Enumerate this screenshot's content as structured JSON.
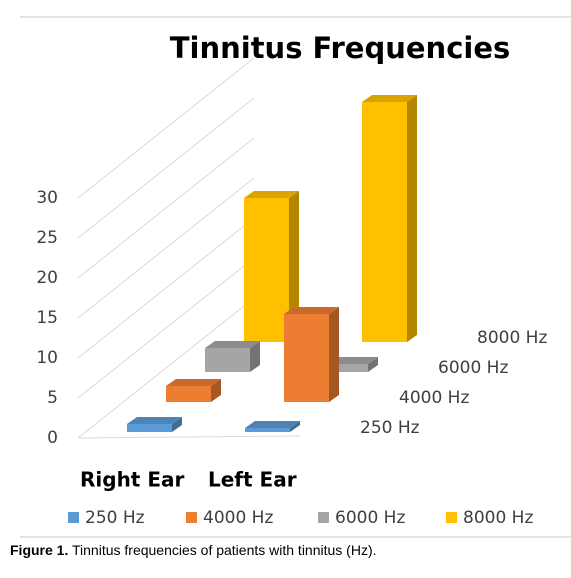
{
  "chart_data": {
    "type": "bar3d",
    "title": "Tinnitus Frequencies",
    "categories": [
      "Right Ear",
      "Left Ear"
    ],
    "series": [
      {
        "name": "250 Hz",
        "color": "#5b9bd5",
        "values": [
          1,
          0.5
        ]
      },
      {
        "name": "4000 Hz",
        "color": "#ed7d31",
        "values": [
          2,
          11
        ]
      },
      {
        "name": "6000 Hz",
        "color": "#a5a5a5",
        "values": [
          3,
          1
        ]
      },
      {
        "name": "8000 Hz",
        "color": "#ffc000",
        "values": [
          18,
          30
        ]
      }
    ],
    "ylim": [
      0,
      35
    ],
    "yticks": [
      0,
      5,
      10,
      15,
      20,
      25,
      30
    ],
    "grid": true,
    "legend": "bottom"
  },
  "caption": {
    "label": "Figure 1.",
    "text": "Tinnitus frequencies of patients with tinnitus (Hz)."
  }
}
